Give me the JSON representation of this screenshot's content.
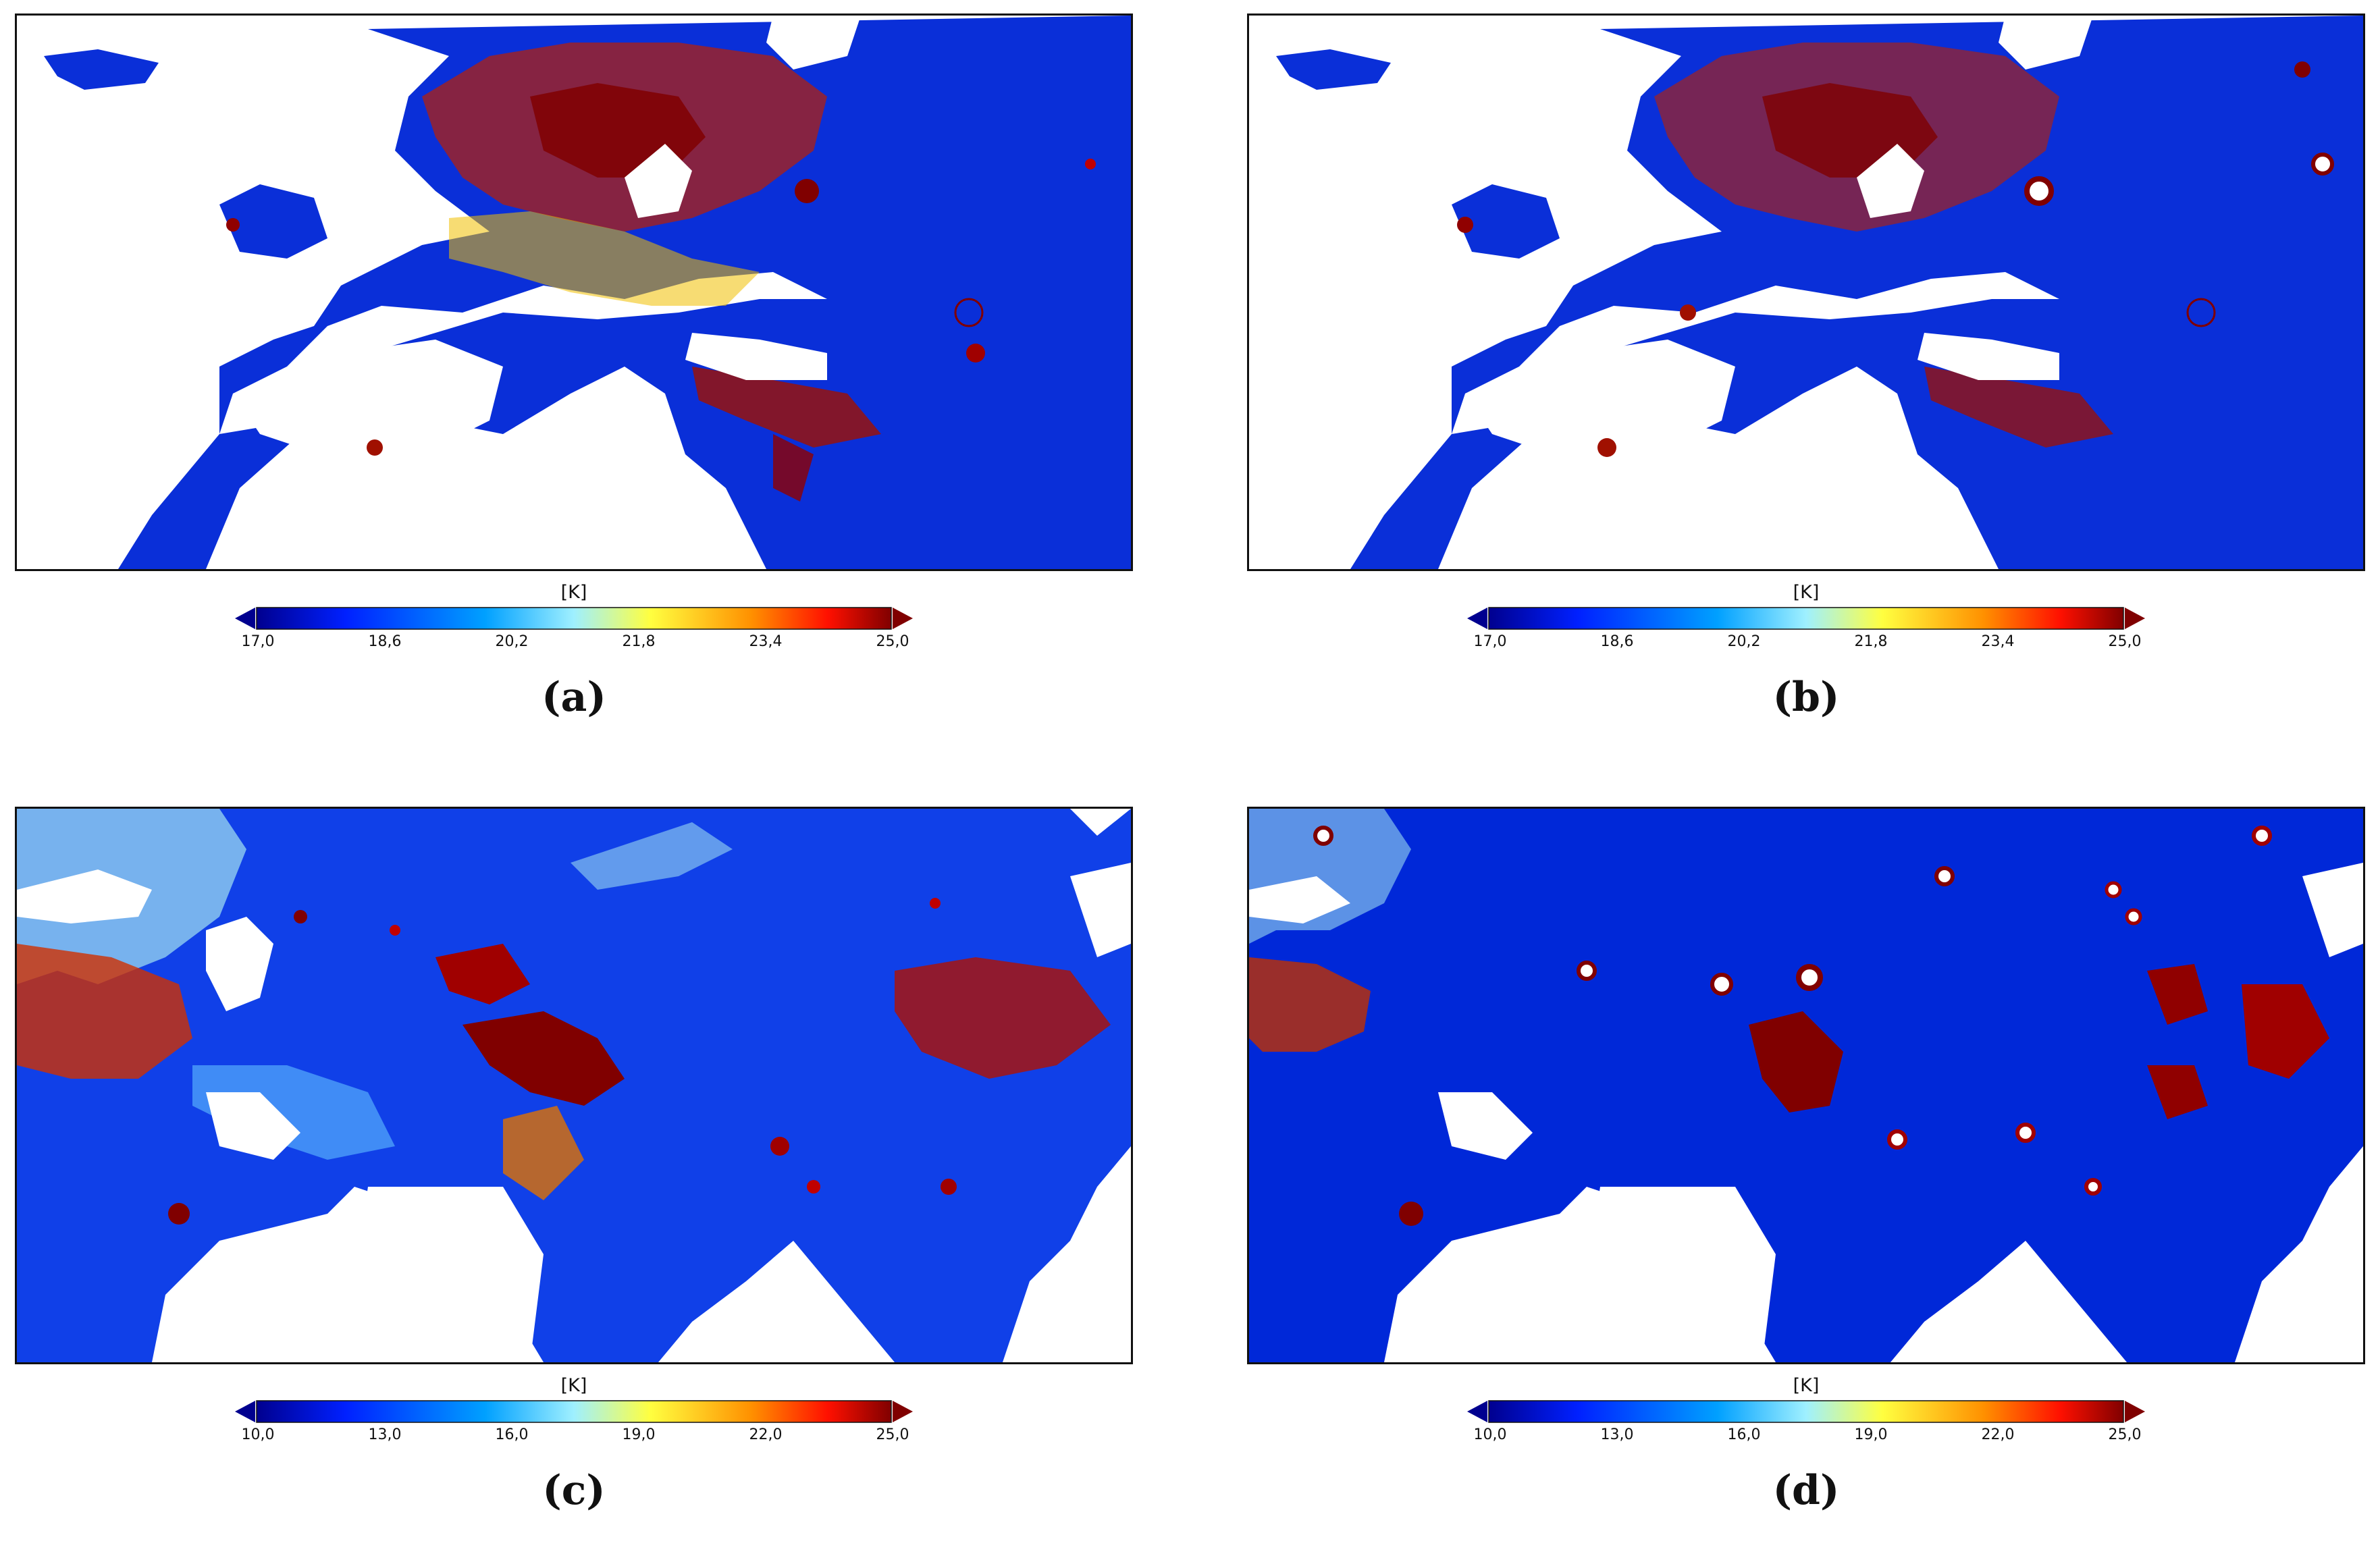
{
  "figure": {
    "panels": [
      {
        "id": "a",
        "label": "(a)",
        "region": "Europe / Middle East",
        "colorbar": {
          "unit": "[K]",
          "min": 17.0,
          "max": 25.0,
          "ticks": [
            "17,0",
            "18,6",
            "20,2",
            "21,8",
            "23,4",
            "25,0"
          ],
          "extend": "both",
          "colormap": "jet",
          "colors": [
            "#00008f",
            "#0020ff",
            "#00a0ff",
            "#9ff0ff",
            "#ffff40",
            "#ff9000",
            "#ff1000",
            "#800000"
          ]
        }
      },
      {
        "id": "b",
        "label": "(b)",
        "region": "Europe / Middle East",
        "colorbar": {
          "unit": "[K]",
          "min": 17.0,
          "max": 25.0,
          "ticks": [
            "17,0",
            "18,6",
            "20,2",
            "21,8",
            "23,4",
            "25,0"
          ],
          "extend": "both",
          "colormap": "jet",
          "colors": [
            "#00008f",
            "#0020ff",
            "#00a0ff",
            "#9ff0ff",
            "#ffff40",
            "#ff9000",
            "#ff1000",
            "#800000"
          ]
        }
      },
      {
        "id": "c",
        "label": "(c)",
        "region": "Middle East / South & East Asia",
        "colorbar": {
          "unit": "[K]",
          "min": 10.0,
          "max": 25.0,
          "ticks": [
            "10,0",
            "13,0",
            "16,0",
            "19,0",
            "22,0",
            "25,0"
          ],
          "extend": "both",
          "colormap": "jet",
          "colors": [
            "#00008f",
            "#0020ff",
            "#00a0ff",
            "#9ff0ff",
            "#ffff40",
            "#ff9000",
            "#ff1000",
            "#800000"
          ]
        }
      },
      {
        "id": "d",
        "label": "(d)",
        "region": "Middle East / South & East Asia",
        "colorbar": {
          "unit": "[K]",
          "min": 10.0,
          "max": 25.0,
          "ticks": [
            "10,0",
            "13,0",
            "16,0",
            "19,0",
            "22,0",
            "25,0"
          ],
          "extend": "both",
          "colormap": "jet",
          "colors": [
            "#00008f",
            "#0020ff",
            "#00a0ff",
            "#9ff0ff",
            "#ffff40",
            "#ff9000",
            "#ff1000",
            "#800000"
          ]
        }
      }
    ]
  }
}
